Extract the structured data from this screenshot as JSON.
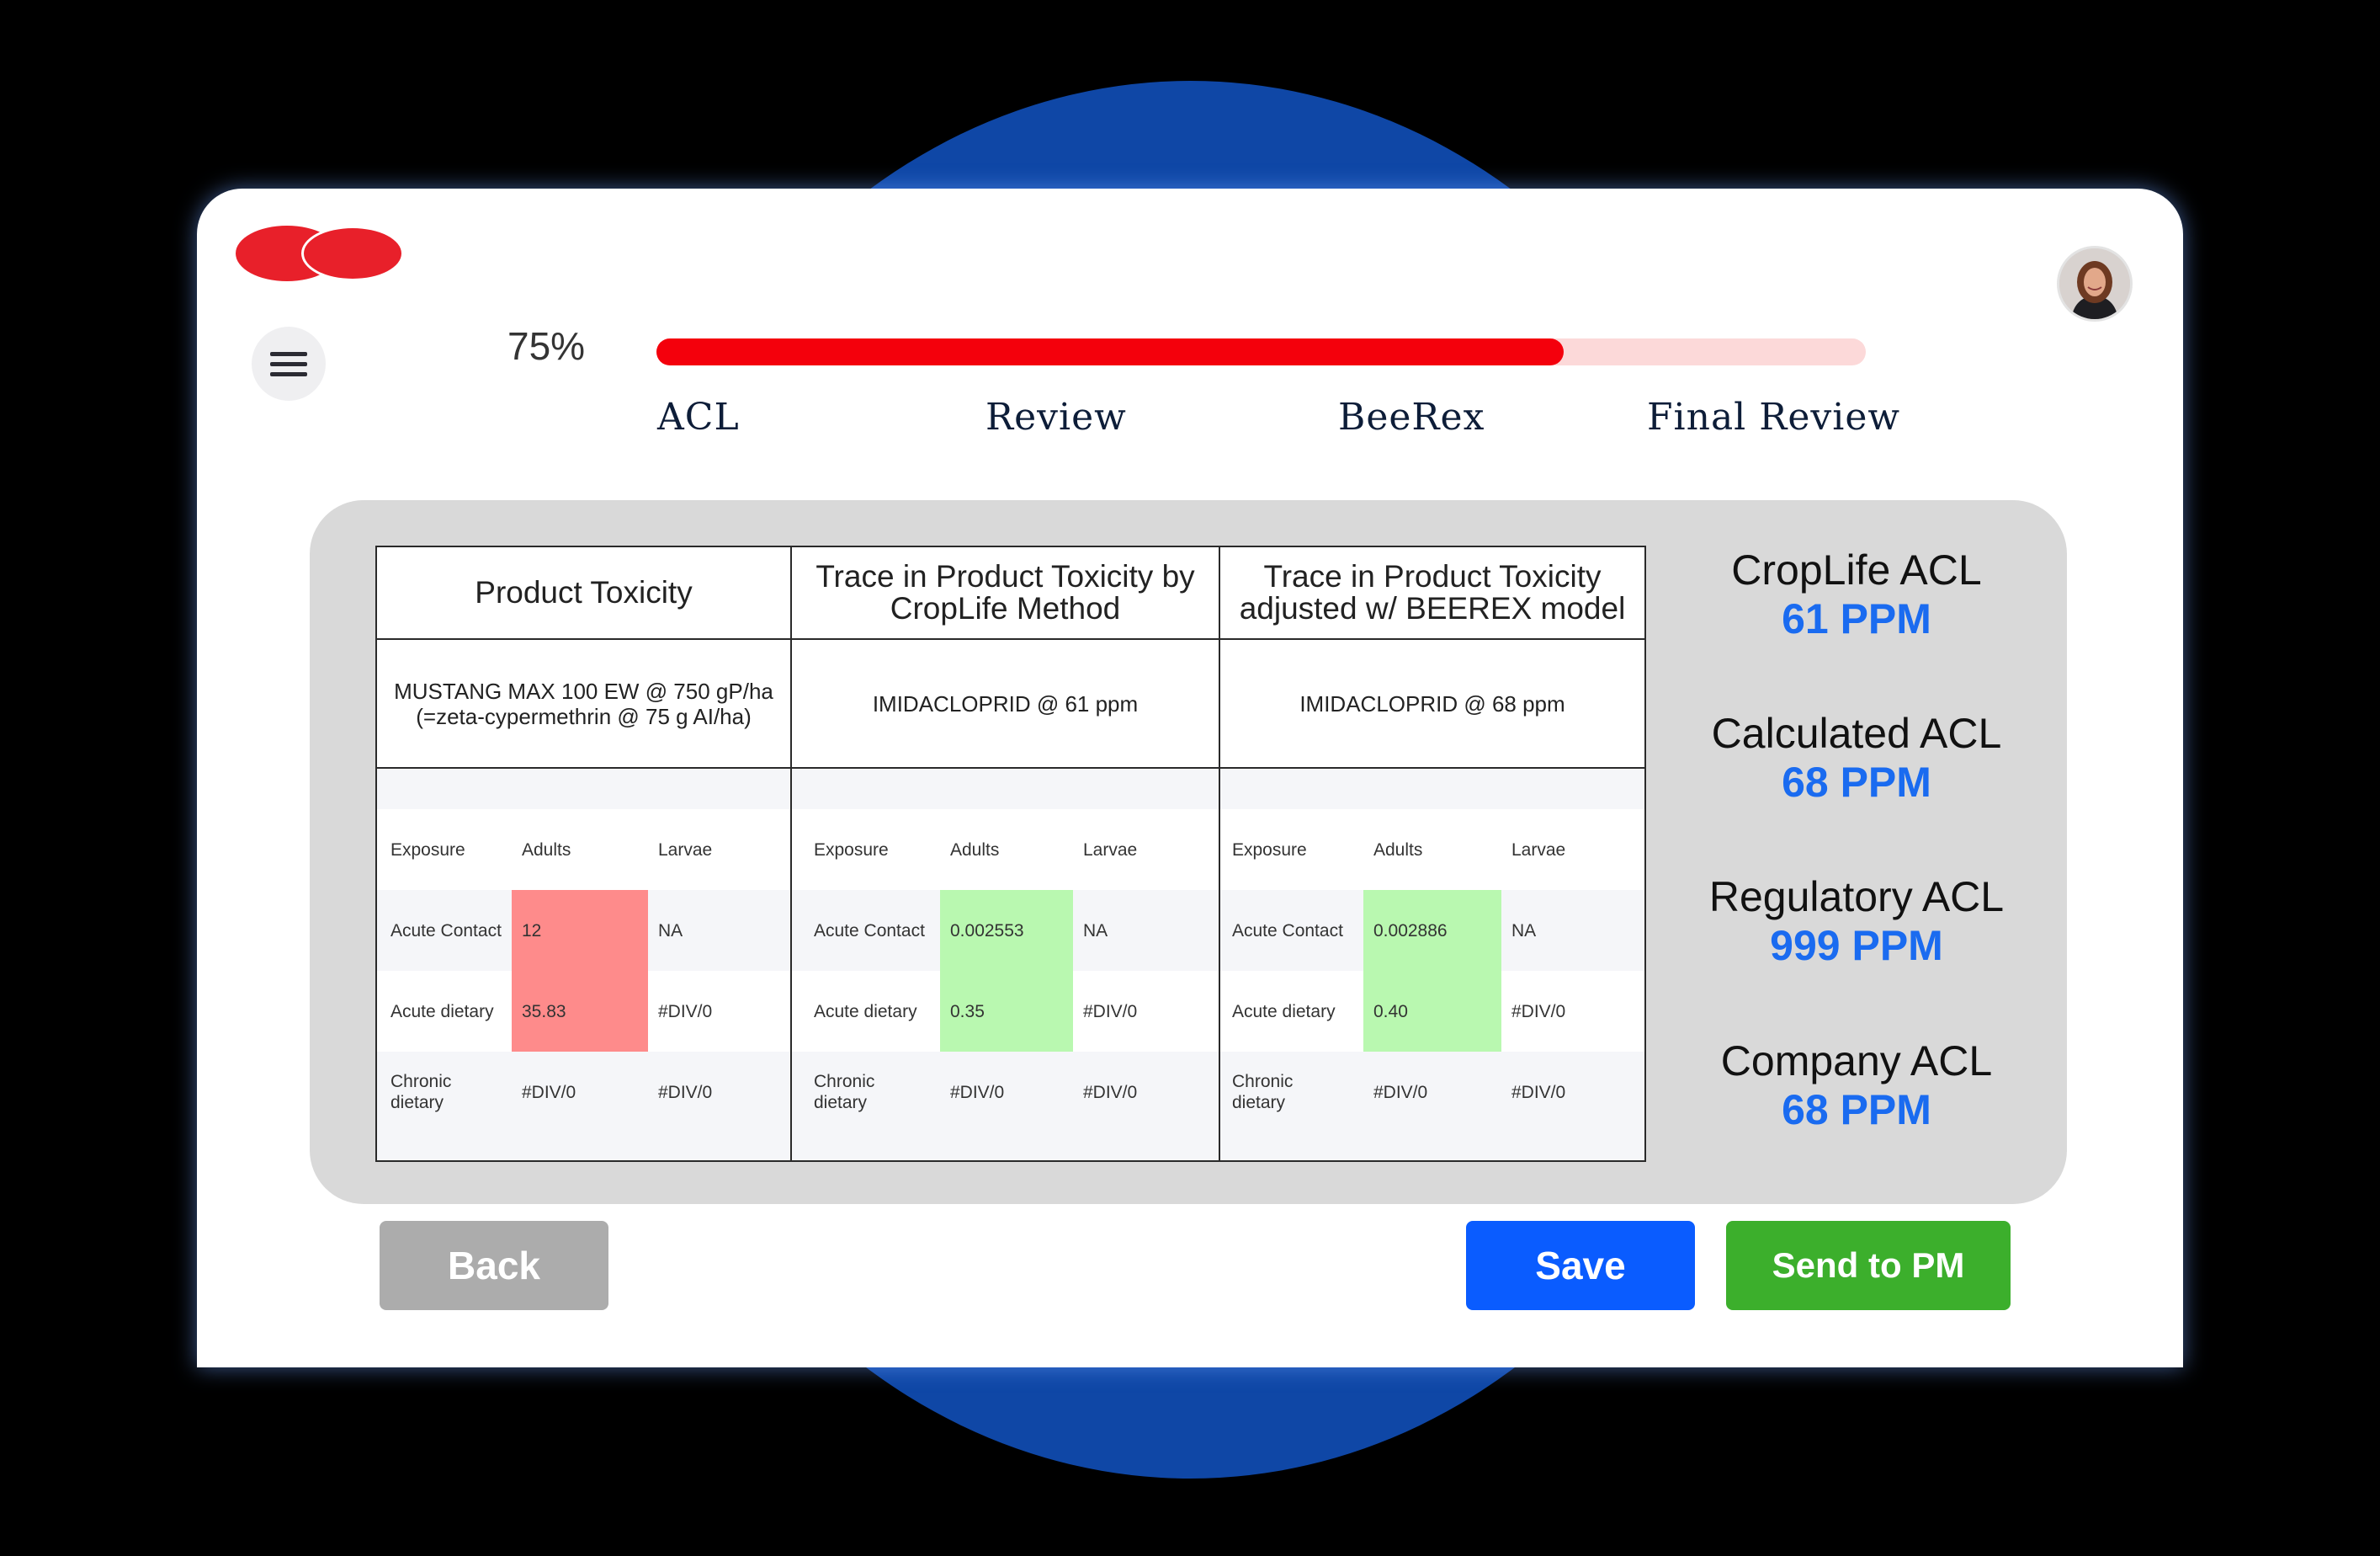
{
  "colors": {
    "accent_red": "#f4000c",
    "progress_track": "#fcd9d9",
    "value_blue": "#1a6bf0",
    "bad_cell": "#fe8b8b",
    "good_cell": "#b9f8b0"
  },
  "header": {
    "logo_icon": "two-red-circles-logo",
    "menu_icon": "hamburger-icon",
    "avatar_icon": "user-avatar"
  },
  "progress": {
    "percent_label": "75%",
    "fraction": 0.75,
    "steps": [
      "ACL",
      "Review",
      "BeeRex",
      "Final Review"
    ]
  },
  "columns": [
    {
      "title": "Product Toxicity",
      "subtitle": "MUSTANG MAX 100 EW @ 750 gP/ha (=zeta-cypermethrin @ 75 g AI/ha)",
      "table": {
        "headers": [
          "Exposure",
          "Adults",
          "Larvae"
        ],
        "rows": [
          {
            "exposure": "Acute Contact",
            "adults": "12",
            "larvae": "NA",
            "status": "bad"
          },
          {
            "exposure": "Acute dietary",
            "adults": "35.83",
            "larvae": "#DIV/0",
            "status": "bad"
          },
          {
            "exposure": "Chronic dietary",
            "adults": "#DIV/0",
            "larvae": "#DIV/0",
            "status": "none"
          }
        ]
      }
    },
    {
      "title": "Trace in Product Toxicity by CropLife Method",
      "subtitle": "IMIDACLOPRID @ 61 ppm",
      "table": {
        "headers": [
          "Exposure",
          "Adults",
          "Larvae"
        ],
        "rows": [
          {
            "exposure": "Acute Contact",
            "adults": "0.002553",
            "larvae": "NA",
            "status": "good"
          },
          {
            "exposure": "Acute dietary",
            "adults": "0.35",
            "larvae": "#DIV/0",
            "status": "good"
          },
          {
            "exposure": "Chronic dietary",
            "adults": "#DIV/0",
            "larvae": "#DIV/0",
            "status": "none"
          }
        ]
      }
    },
    {
      "title": "Trace in Product Toxicity adjusted w/ BEEREX model",
      "subtitle": "IMIDACLOPRID @ 68 ppm",
      "table": {
        "headers": [
          "Exposure",
          "Adults",
          "Larvae"
        ],
        "rows": [
          {
            "exposure": "Acute Contact",
            "adults": "0.002886",
            "larvae": "NA",
            "status": "good"
          },
          {
            "exposure": "Acute dietary",
            "adults": "0.40",
            "larvae": "#DIV/0",
            "status": "good"
          },
          {
            "exposure": "Chronic dietary",
            "adults": "#DIV/0",
            "larvae": "#DIV/0",
            "status": "none"
          }
        ]
      }
    }
  ],
  "acl_summary": [
    {
      "label": "CropLife ACL",
      "value": "61 PPM"
    },
    {
      "label": "Calculated ACL",
      "value": "68 PPM"
    },
    {
      "label": "Regulatory ACL",
      "value": "999 PPM"
    },
    {
      "label": "Company ACL",
      "value": "68 PPM"
    }
  ],
  "actions": {
    "back_label": "Back",
    "save_label": "Save",
    "send_label": "Send to PM"
  }
}
